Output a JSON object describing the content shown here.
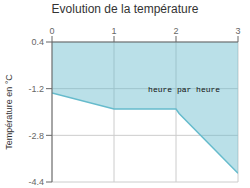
{
  "chart_data": {
    "type": "area",
    "title": "Evolution de la température",
    "ylabel": "Température en °C",
    "annotations": [
      {
        "text": "heure par heure",
        "x": 1.55,
        "y": -1.3
      }
    ],
    "x": [
      0,
      1.0,
      2.0,
      2.05,
      3.0
    ],
    "values": [
      -1.35,
      -1.9,
      -1.9,
      -2.05,
      -4.1
    ],
    "color": "#66bbcc",
    "xlim": [
      0,
      3
    ],
    "ylim": [
      -4.4,
      0.4
    ],
    "xticks": [
      0,
      1,
      2,
      3
    ],
    "yticks": [
      0.4,
      -1.2,
      -2.8,
      -4.4
    ],
    "grid": true
  }
}
